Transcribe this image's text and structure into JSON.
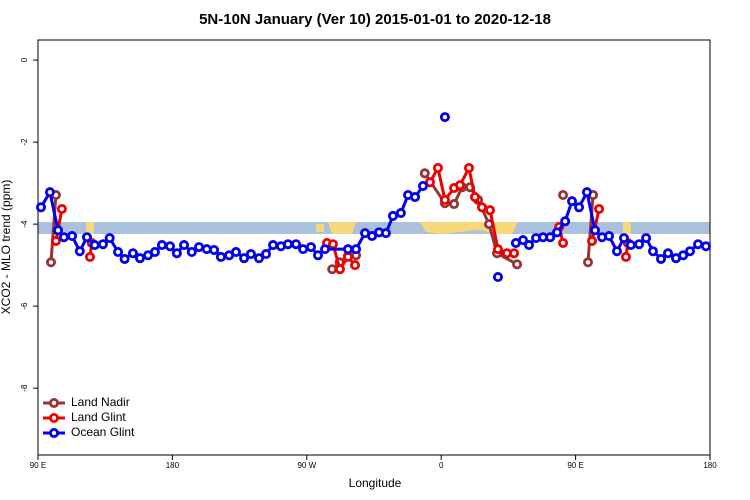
{
  "chart_data": {
    "type": "line",
    "title": "5N-10N January (Ver 10)   2015-01-01 to 2020-12-18",
    "xlabel": "Longitude",
    "ylabel": "XCO2 - MLO trend (ppm)",
    "xlim": [
      90,
      540
    ],
    "ylim": [
      -9.63,
      0.49
    ],
    "xticks": [
      {
        "value": 90,
        "label": "90 E"
      },
      {
        "value": 180,
        "label": "180"
      },
      {
        "value": 270,
        "label": "90 W"
      },
      {
        "value": 360,
        "label": "0"
      },
      {
        "value": 450,
        "label": "90 E"
      },
      {
        "value": 540,
        "label": "180"
      }
    ],
    "yticks": [
      0,
      -2,
      -4,
      -6,
      -8
    ],
    "legend": "bottom-left",
    "series": [
      {
        "name": "Land Nadir",
        "color": "#993333",
        "x": [
          98.7,
          102,
          null,
          287,
          292,
          297.6,
          303,
          null,
          349,
          362.5,
          368.6,
          374,
          379.3,
          384.7,
          392,
          397.4,
          410.8,
          null,
          441.6,
          null,
          458.3,
          461.7
        ],
        "values": [
          -4.93,
          -3.29,
          null,
          -5.1,
          -4.93,
          -4.78,
          -4.76,
          null,
          -2.76,
          -3.49,
          -3.51,
          -3.1,
          -3.1,
          -3.41,
          -4.0,
          -4.71,
          -4.98,
          null,
          -3.29,
          null,
          -4.93,
          -3.29
        ]
      },
      {
        "name": "Land Glint",
        "color": "#ee0000",
        "x": [
          102,
          106,
          null,
          124.8,
          126,
          null,
          283.5,
          287.5,
          292.2,
          297.6,
          302.3,
          null,
          352.5,
          357.8,
          362.5,
          368.6,
          372.6,
          378.6,
          382.6,
          387.3,
          392.7,
          398,
          404,
          408.8,
          null,
          439,
          441.6,
          null,
          461,
          465.7,
          null,
          483.7,
          485
        ],
        "values": [
          -4.41,
          -3.63,
          null,
          -4.8,
          -4.46,
          null,
          -4.46,
          -4.49,
          -5.1,
          -4.8,
          -5.0,
          null,
          -2.98,
          -2.63,
          -3.41,
          -3.12,
          -3.05,
          -2.63,
          -3.34,
          -3.59,
          -3.66,
          -4.61,
          -4.71,
          -4.71,
          null,
          -4.07,
          -4.46,
          null,
          -4.41,
          -3.63,
          null,
          -4.8,
          -4.46
        ]
      },
      {
        "name": "Ocean Glint",
        "color": "#0000ee",
        "x": [
          92,
          98,
          103.4,
          107.4,
          112.8,
          118,
          122.8,
          128,
          133.5,
          138,
          143.6,
          148,
          153.6,
          158.3,
          163.7,
          168.3,
          173,
          178.4,
          183,
          187.8,
          193,
          197.8,
          203,
          207.9,
          212.5,
          218,
          222.6,
          228,
          232.6,
          238,
          242.7,
          247.4,
          252.7,
          257.4,
          262.8,
          267.5,
          272.8,
          277.5,
          282.2,
          297.6,
          303,
          309,
          313.7,
          318.4,
          323,
          327.7,
          333,
          337.8,
          342.5,
          347.8,
          null,
          362.5,
          null,
          398,
          null,
          410,
          414.8,
          418.8,
          423.5,
          428.2,
          433,
          437.6,
          443,
          447.6,
          452.3,
          457.6,
          463,
          467.7,
          472.4,
          477.7,
          482.4,
          487,
          492.5,
          497.2,
          501.8,
          507.2,
          511.9,
          517.2,
          522,
          526.6,
          532,
          537.3
        ],
        "values": [
          -3.59,
          -3.22,
          -4.15,
          -4.32,
          -4.29,
          -4.66,
          -4.32,
          -4.51,
          -4.49,
          -4.34,
          -4.68,
          -4.85,
          -4.71,
          -4.83,
          -4.76,
          -4.68,
          -4.51,
          -4.54,
          -4.71,
          -4.51,
          -4.68,
          -4.56,
          -4.61,
          -4.63,
          -4.8,
          -4.76,
          -4.68,
          -4.83,
          -4.73,
          -4.83,
          -4.73,
          -4.51,
          -4.54,
          -4.49,
          -4.49,
          -4.61,
          -4.56,
          -4.76,
          -4.61,
          -4.61,
          -4.61,
          -4.22,
          -4.29,
          -4.2,
          -4.22,
          -3.8,
          -3.73,
          -3.29,
          -3.34,
          -3.07,
          null,
          -1.39,
          null,
          -5.29,
          null,
          -4.46,
          -4.39,
          -4.51,
          -4.34,
          -4.32,
          -4.32,
          -4.2,
          -3.93,
          -3.44,
          -3.59,
          -3.22,
          -4.15,
          -4.32,
          -4.29,
          -4.66,
          -4.34,
          -4.51,
          -4.49,
          -4.34,
          -4.66,
          -4.85,
          -4.71,
          -4.83,
          -4.76,
          -4.66,
          -4.49,
          -4.54
        ]
      }
    ]
  }
}
